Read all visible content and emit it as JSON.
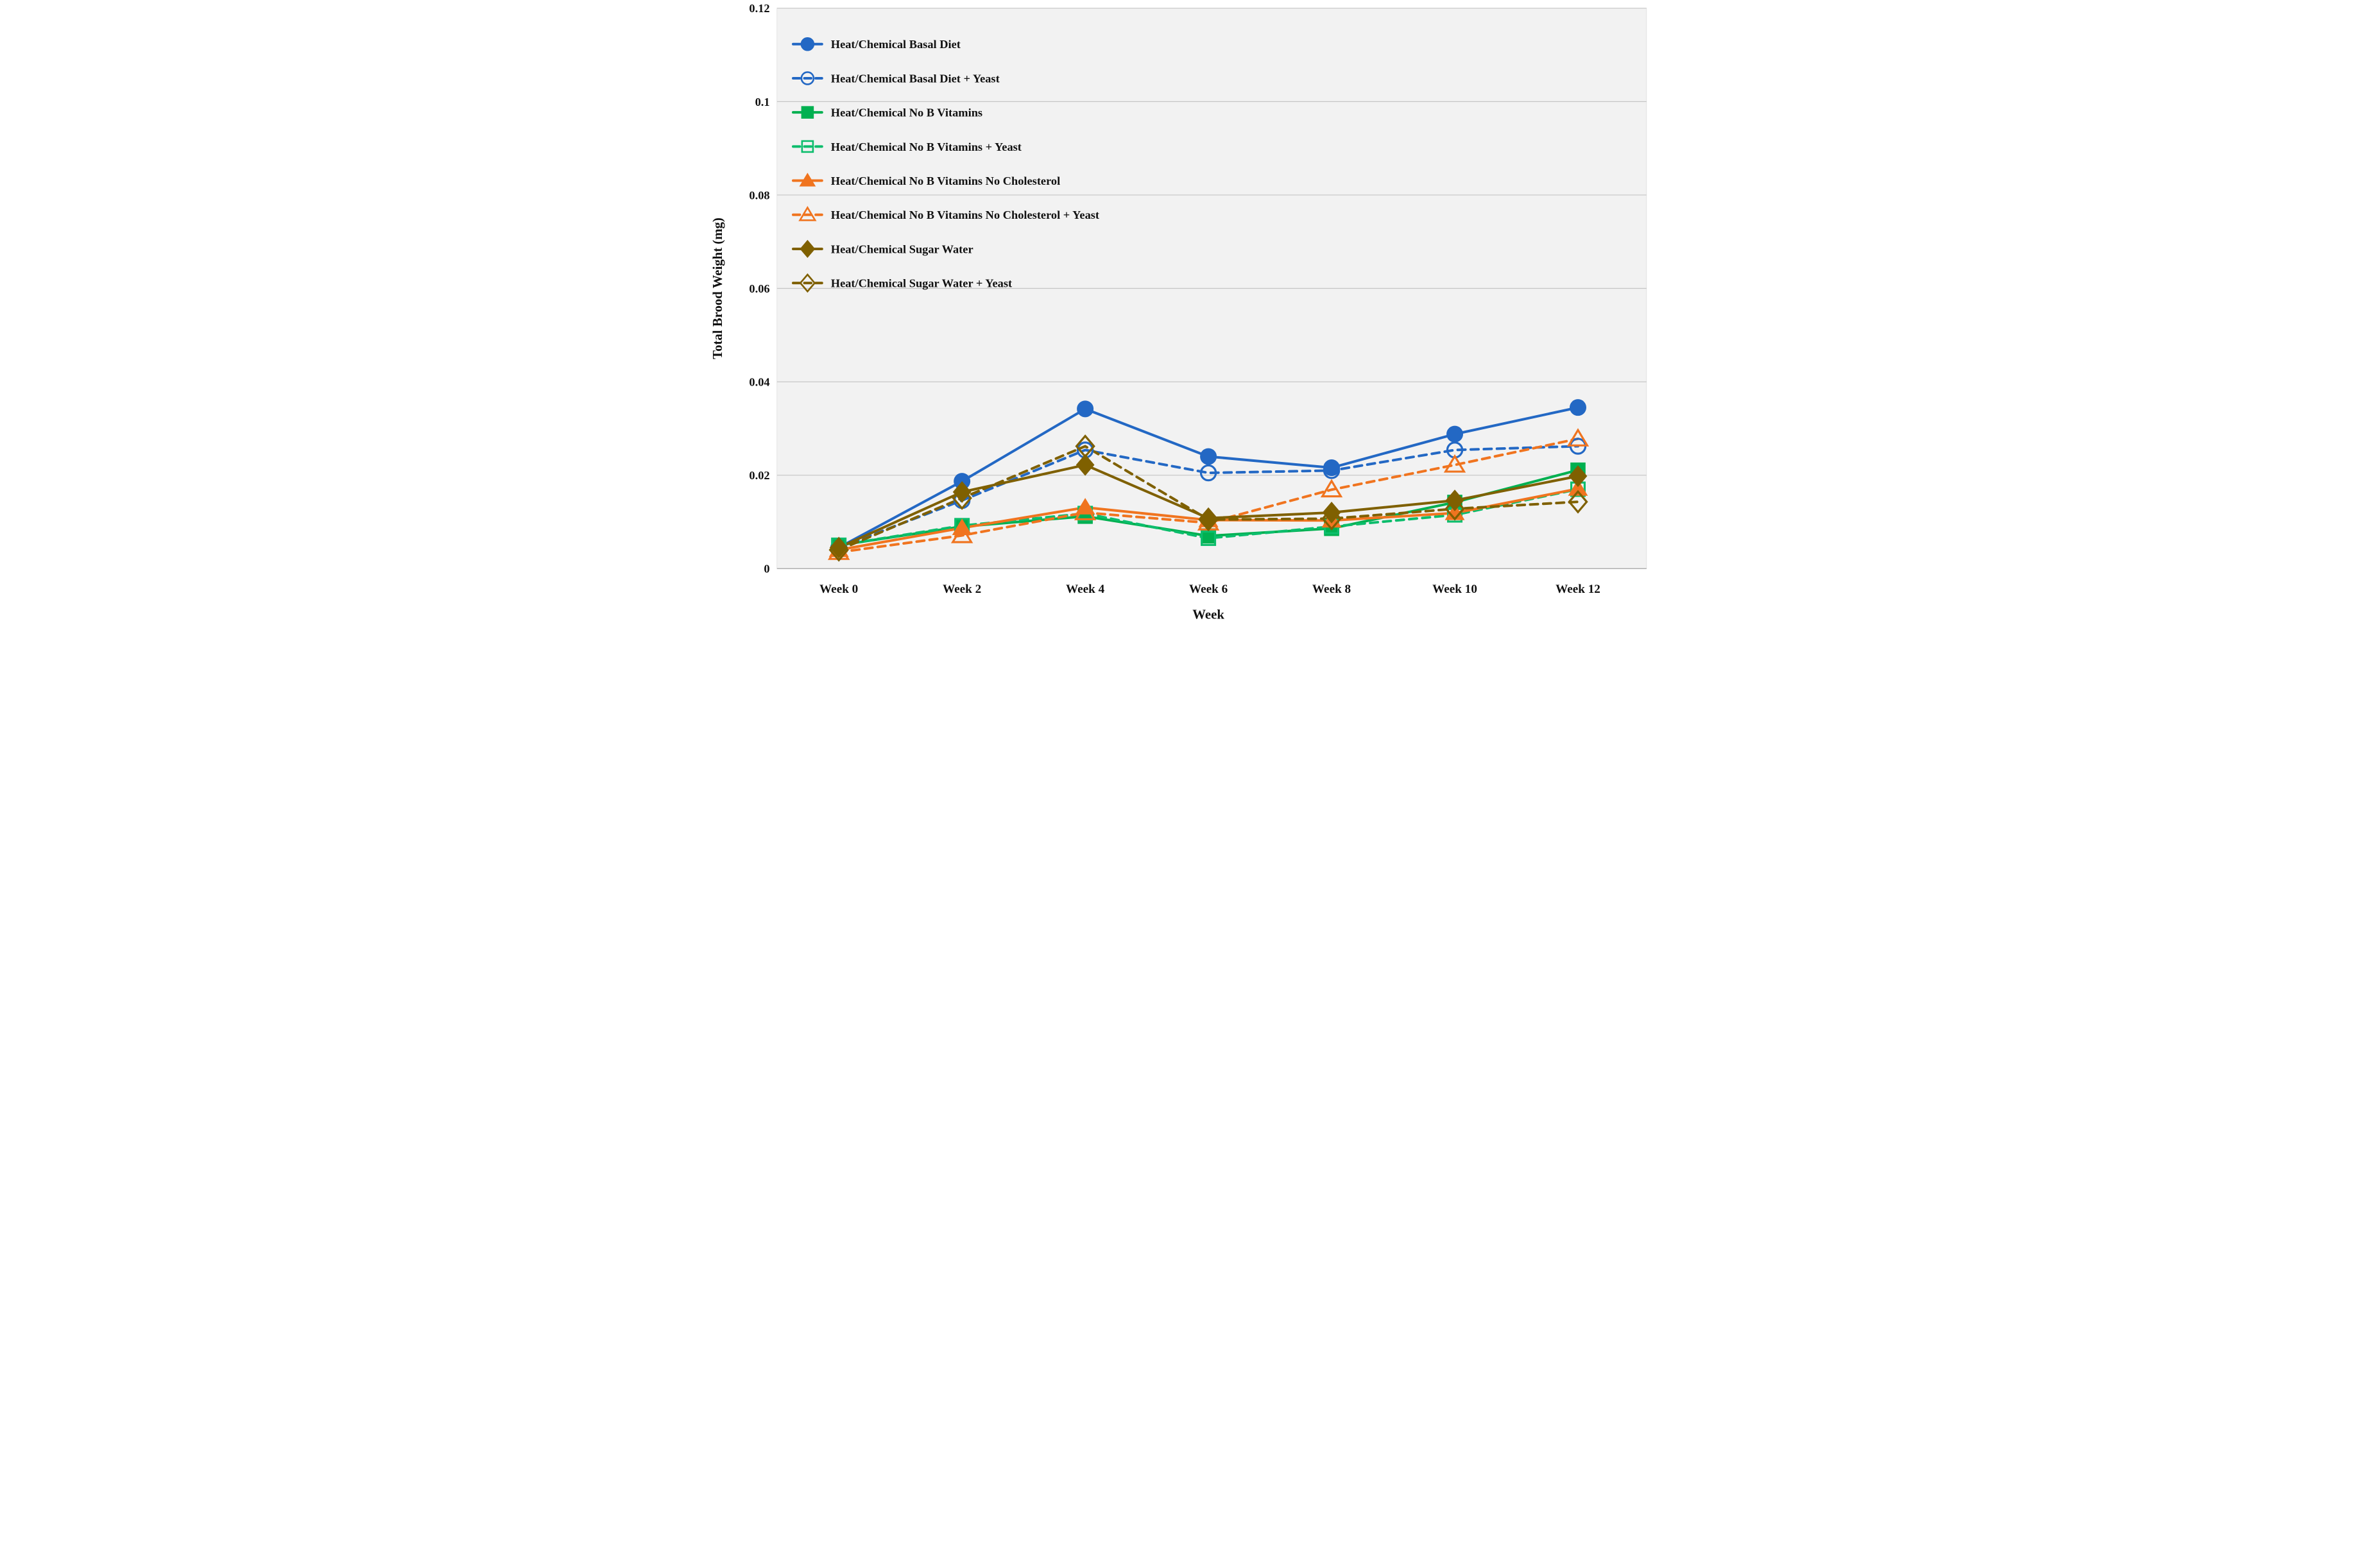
{
  "figure": {
    "background": "#ffffff",
    "plot_background": "#f2f2f2",
    "grid_color": "#c5c5c5",
    "axis_line_color": "#a3a3a3",
    "plot_border_color": "#dedede",
    "text_color": "#111111"
  },
  "chart_data": {
    "type": "line",
    "title": "",
    "xlabel": "Week",
    "ylabel": "Total Brood Weight (mg)",
    "x_categories": [
      "Week 0",
      "Week 2",
      "Week 4",
      "Week 6",
      "Week 8",
      "Week 10",
      "Week 12"
    ],
    "ylim": [
      0,
      0.12
    ],
    "yticks": [
      {
        "value": 0,
        "label": "0"
      },
      {
        "value": 0.02,
        "label": "0.02"
      },
      {
        "value": 0.04,
        "label": "0.04"
      },
      {
        "value": 0.06,
        "label": "0.06"
      },
      {
        "value": 0.08,
        "label": "0.08"
      },
      {
        "value": 0.1,
        "label": "0.1"
      },
      {
        "value": 0.12,
        "label": "0.12"
      }
    ],
    "grid": "horizontal",
    "legend_position": "inside-top-left",
    "series": [
      {
        "name": "Heat/Chemical Basal Diet",
        "color": "#2368C4",
        "line": "solid",
        "marker": "circle",
        "fill": "filled",
        "values": [
          0.0045,
          0.0187,
          0.0342,
          0.024,
          0.0216,
          0.0288,
          0.0345
        ]
      },
      {
        "name": "Heat/Chemical Basal Diet + Yeast",
        "color": "#2368C4",
        "line": "dashed",
        "marker": "circle",
        "fill": "open",
        "values": [
          0.0045,
          0.0146,
          0.0254,
          0.0205,
          0.021,
          0.0254,
          0.0262
        ]
      },
      {
        "name": "Heat/Chemical No B Vitamins",
        "color": "#00B050",
        "line": "solid",
        "marker": "square",
        "fill": "filled",
        "values": [
          0.005,
          0.009,
          0.0112,
          0.007,
          0.0086,
          0.0142,
          0.0211
        ]
      },
      {
        "name": "Heat/Chemical No B Vitamins + Yeast",
        "color": "#0CBD6C",
        "line": "dashed",
        "marker": "square",
        "fill": "open",
        "values": [
          0.005,
          0.0092,
          0.0118,
          0.0065,
          0.009,
          0.0115,
          0.017
        ]
      },
      {
        "name": "Heat/Chemical No B Vitamins No Cholesterol",
        "color": "#F0741F",
        "line": "solid",
        "marker": "triangle",
        "fill": "filled",
        "values": [
          0.004,
          0.0087,
          0.0131,
          0.0104,
          0.0103,
          0.0119,
          0.0171
        ]
      },
      {
        "name": "Heat/Chemical No B Vitamins No Cholesterol + Yeast",
        "color": "#F0741F",
        "line": "dashed",
        "marker": "triangle",
        "fill": "open",
        "values": [
          0.0035,
          0.0071,
          0.012,
          0.0098,
          0.0169,
          0.0222,
          0.0278
        ]
      },
      {
        "name": "Heat/Chemical Sugar Water",
        "color": "#7F6000",
        "line": "solid",
        "marker": "diamond",
        "fill": "filled",
        "values": [
          0.0045,
          0.0164,
          0.0222,
          0.0108,
          0.012,
          0.0146,
          0.0198
        ]
      },
      {
        "name": "Heat/Chemical Sugar Water + Yeast",
        "color": "#7F6000",
        "line": "dashed",
        "marker": "diamond",
        "fill": "open",
        "values": [
          0.004,
          0.0151,
          0.0262,
          0.0105,
          0.0107,
          0.0128,
          0.0143
        ]
      }
    ]
  }
}
